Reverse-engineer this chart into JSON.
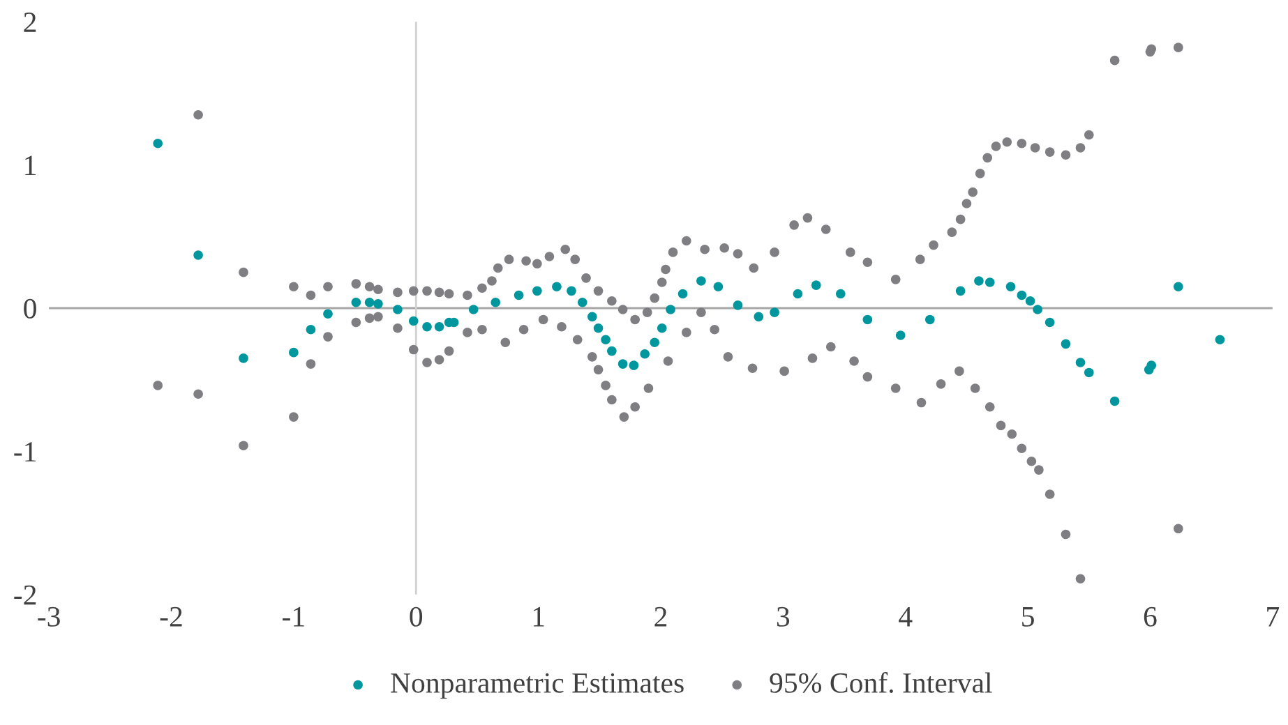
{
  "chart_data": {
    "type": "scatter",
    "marker": "circle",
    "legend": "bottom",
    "grid": false,
    "xlim": [
      -3,
      7
    ],
    "xticks": [
      -3,
      -2,
      -1,
      0,
      1,
      2,
      3,
      4,
      5,
      6,
      7
    ],
    "ylim": [
      -2,
      2
    ],
    "yticks": [
      -2,
      -1,
      0,
      1,
      2
    ],
    "ref_lines": [
      {
        "axis": "y",
        "value": 0,
        "color": "#a6a6a6"
      },
      {
        "axis": "x",
        "value": 0,
        "color": "#d0d0d0"
      }
    ],
    "series": [
      {
        "name": "Nonparametric Estimates",
        "color": "#00969e",
        "x": [
          -2.11,
          -1.78,
          -1.41,
          -1.0,
          -0.86,
          -0.72,
          -0.49,
          -0.38,
          -0.31,
          -0.15,
          -0.02,
          0.09,
          0.19,
          0.27,
          0.31,
          0.47,
          0.65,
          0.84,
          0.99,
          1.15,
          1.27,
          1.36,
          1.44,
          1.49,
          1.55,
          1.6,
          1.69,
          1.78,
          1.87,
          1.95,
          2.01,
          2.08,
          2.18,
          2.33,
          2.47,
          2.63,
          2.8,
          2.93,
          3.12,
          3.27,
          3.47,
          3.69,
          3.96,
          4.2,
          4.45,
          4.6,
          4.69,
          4.86,
          4.95,
          5.02,
          5.08,
          5.18,
          5.31,
          5.43,
          5.5,
          5.71,
          5.99,
          6.01,
          6.23,
          6.57
        ],
        "values": [
          1.15,
          0.37,
          -0.35,
          -0.31,
          -0.15,
          -0.04,
          0.04,
          0.04,
          0.03,
          -0.01,
          -0.09,
          -0.13,
          -0.13,
          -0.1,
          -0.1,
          -0.01,
          0.04,
          0.09,
          0.12,
          0.15,
          0.12,
          0.04,
          -0.06,
          -0.14,
          -0.22,
          -0.3,
          -0.39,
          -0.4,
          -0.32,
          -0.24,
          -0.14,
          -0.01,
          0.1,
          0.19,
          0.15,
          0.02,
          -0.06,
          -0.03,
          0.1,
          0.16,
          0.1,
          -0.08,
          -0.19,
          -0.08,
          0.12,
          0.19,
          0.18,
          0.15,
          0.09,
          0.05,
          -0.01,
          -0.1,
          -0.25,
          -0.38,
          -0.45,
          -0.65,
          -0.43,
          -0.4,
          0.15,
          -0.22
        ]
      },
      {
        "name": "95% Conf. Interval",
        "color": "#7f7f83",
        "x": [
          -1.78,
          -1.41,
          -1.0,
          -0.86,
          -0.72,
          -0.49,
          -0.38,
          -0.31,
          -0.15,
          -0.02,
          0.09,
          0.19,
          0.27,
          0.42,
          0.54,
          0.62,
          0.67,
          0.76,
          0.9,
          0.99,
          1.09,
          1.22,
          1.3,
          1.39,
          1.49,
          1.6,
          1.69,
          1.79,
          1.89,
          1.95,
          2.01,
          2.04,
          2.1,
          2.21,
          2.36,
          2.52,
          2.63,
          2.76,
          2.93,
          3.09,
          3.2,
          3.35,
          3.55,
          3.69,
          3.92,
          4.12,
          4.23,
          4.38,
          4.45,
          4.5,
          4.55,
          4.61,
          4.67,
          4.74,
          4.83,
          4.95,
          5.06,
          5.18,
          5.31,
          5.43,
          5.5,
          5.71,
          6.0,
          6.01,
          6.23,
          -2.11,
          -1.78,
          -1.41,
          -1.0,
          -0.86,
          -0.72,
          -0.49,
          -0.38,
          -0.31,
          -0.15,
          -0.02,
          0.09,
          0.19,
          0.27,
          0.42,
          0.54,
          0.73,
          0.88,
          1.04,
          1.19,
          1.32,
          1.44,
          1.49,
          1.55,
          1.6,
          1.7,
          1.79,
          1.9,
          2.06,
          2.21,
          2.33,
          2.44,
          2.55,
          2.75,
          3.01,
          3.24,
          3.39,
          3.58,
          3.69,
          3.92,
          4.13,
          4.29,
          4.44,
          4.57,
          4.69,
          4.78,
          4.87,
          4.95,
          5.03,
          5.09,
          5.18,
          5.31,
          5.43,
          6.23
        ],
        "values": [
          1.35,
          0.25,
          0.15,
          0.09,
          0.15,
          0.17,
          0.15,
          0.13,
          0.11,
          0.12,
          0.12,
          0.11,
          0.1,
          0.09,
          0.14,
          0.19,
          0.28,
          0.34,
          0.33,
          0.31,
          0.36,
          0.41,
          0.34,
          0.21,
          0.12,
          0.05,
          -0.01,
          -0.08,
          -0.03,
          0.07,
          0.18,
          0.27,
          0.39,
          0.47,
          0.41,
          0.42,
          0.38,
          0.28,
          0.39,
          0.58,
          0.63,
          0.55,
          0.39,
          0.32,
          0.2,
          0.34,
          0.44,
          0.53,
          0.62,
          0.73,
          0.81,
          0.94,
          1.05,
          1.13,
          1.16,
          1.15,
          1.12,
          1.09,
          1.07,
          1.12,
          1.21,
          1.73,
          1.79,
          1.81,
          1.82,
          -0.54,
          -0.6,
          -0.96,
          -0.76,
          -0.39,
          -0.2,
          -0.1,
          -0.07,
          -0.06,
          -0.14,
          -0.29,
          -0.38,
          -0.36,
          -0.3,
          -0.17,
          -0.15,
          -0.24,
          -0.15,
          -0.08,
          -0.13,
          -0.22,
          -0.34,
          -0.43,
          -0.54,
          -0.64,
          -0.76,
          -0.69,
          -0.56,
          -0.37,
          -0.17,
          -0.03,
          -0.15,
          -0.34,
          -0.42,
          -0.44,
          -0.35,
          -0.27,
          -0.37,
          -0.48,
          -0.56,
          -0.66,
          -0.53,
          -0.44,
          -0.56,
          -0.69,
          -0.82,
          -0.88,
          -0.98,
          -1.07,
          -1.13,
          -1.3,
          -1.58,
          -1.89,
          -1.54
        ]
      }
    ]
  }
}
